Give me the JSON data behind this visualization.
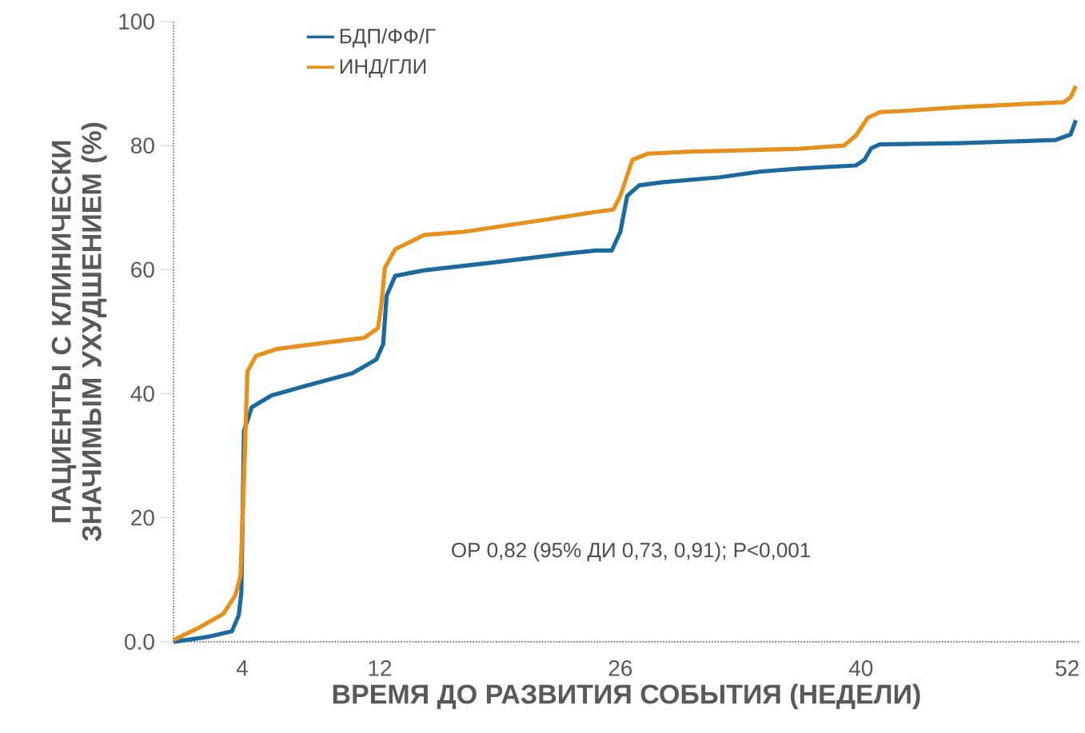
{
  "chart_data": {
    "type": "line",
    "xlabel": "ВРЕМЯ ДО РАЗВИТИЯ СОБЫТИЯ (НЕДЕЛИ)",
    "ylabel": "ПАЦИЕНТЫ С КЛИНИЧЕСКИ ЗНАЧИМЫМ УХУДШЕНИЕМ (%)",
    "annotations": [
      "ОР 0,82 (95% ДИ 0,73, 0,91); P<0,001"
    ],
    "legend": "top",
    "xlim": [
      0,
      52.7
    ],
    "ylim": [
      0,
      100
    ],
    "xticks": [
      4,
      12,
      26,
      40,
      52
    ],
    "yticks": [
      {
        "value": 0,
        "label": "0.0"
      },
      20,
      40,
      60,
      80,
      100
    ],
    "series": [
      {
        "name": "БДП/ФФ/Г",
        "color": "#1a6aa0",
        "x": [
          0,
          2,
          3.4,
          3.8,
          3.95,
          4.1,
          4.55,
          5.7,
          7.6,
          10.4,
          11.8,
          12.2,
          12.4,
          12.9,
          14.6,
          18.7,
          22.9,
          24.6,
          25.5,
          26,
          26.4,
          27.1,
          28.5,
          31.8,
          34.1,
          36.4,
          39.7,
          40.2,
          40.6,
          41.1,
          45.7,
          51.3,
          52.2,
          52.5
        ],
        "values": [
          0,
          0.8,
          1.7,
          4.3,
          8,
          34,
          37.8,
          39.7,
          41.2,
          43.3,
          45.5,
          48,
          55.8,
          59,
          59.9,
          61.2,
          62.6,
          63.1,
          63.1,
          66.1,
          71.9,
          73.6,
          74.1,
          74.9,
          75.8,
          76.3,
          76.8,
          77.7,
          79.6,
          80.2,
          80.4,
          80.9,
          81.8,
          84.1
        ]
      },
      {
        "name": "ИНД/ГЛИ",
        "color": "#e8901c",
        "x": [
          0,
          1.5,
          2.9,
          3.6,
          3.9,
          4.1,
          4.3,
          4.8,
          6,
          8.5,
          11.1,
          11.9,
          12.1,
          12.3,
          12.9,
          14.6,
          16.9,
          21.5,
          24.3,
          25.6,
          26,
          26.7,
          27.6,
          29.9,
          36.4,
          39,
          39.7,
          40.4,
          41.1,
          42.5,
          45.7,
          51.8,
          52.2,
          52.5
        ],
        "values": [
          0.3,
          2.3,
          4.5,
          7.5,
          10.7,
          26,
          43.6,
          46.1,
          47.2,
          48.1,
          49,
          50.6,
          54.5,
          60.3,
          63.3,
          65.6,
          66.1,
          68,
          69.2,
          69.7,
          71.9,
          77.7,
          78.7,
          79,
          79.5,
          80,
          81.6,
          84.5,
          85.4,
          85.6,
          86.2,
          87,
          87.8,
          89.6
        ]
      }
    ]
  }
}
